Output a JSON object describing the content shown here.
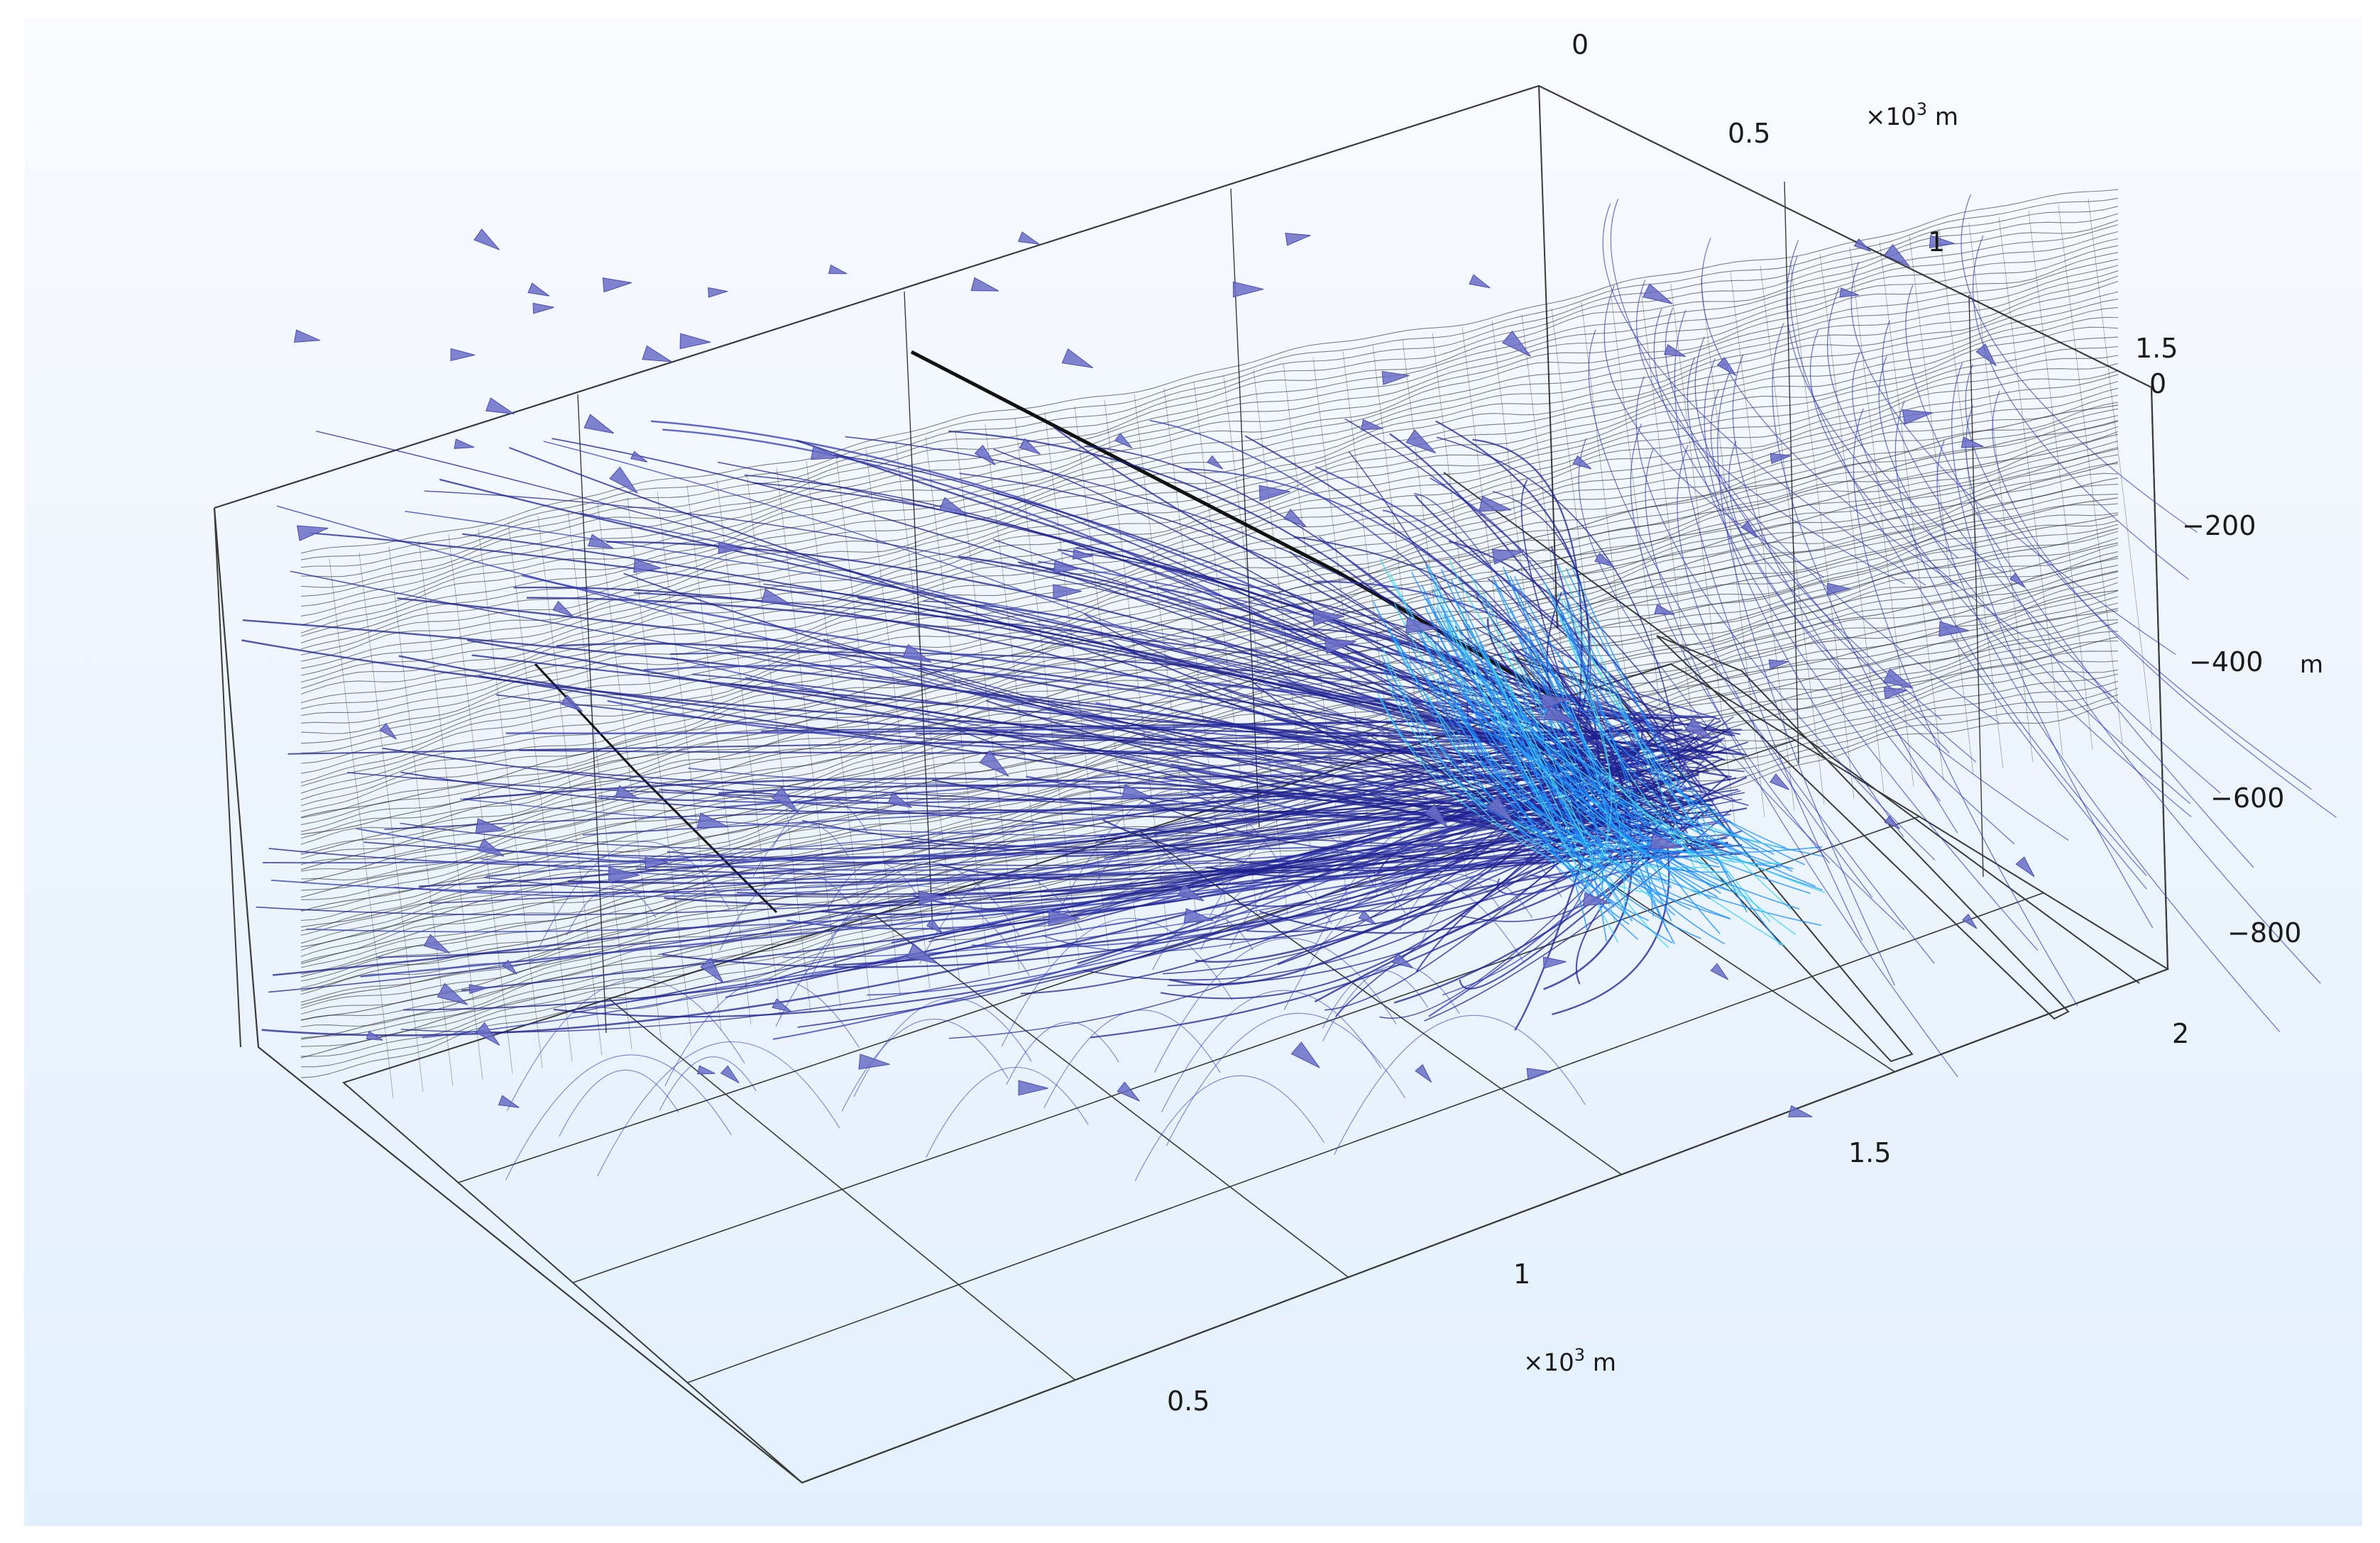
{
  "plot": {
    "type": "3d-streamline",
    "description_colors": {
      "background_top": "#f9fbfe",
      "background_bottom": "#e3f0fc",
      "box_lines": "#3a3a3a",
      "mesh_lines": "#1c1c1c",
      "streamline_dark": "#1c1f8c",
      "streamline_mid": "#3038b0",
      "streamline_bright": "#1e90ff",
      "streamline_cyan": "#44d4ef",
      "arrow_fill": "#6a6dc6"
    }
  },
  "axes": {
    "x": {
      "ticks": [
        "0.5",
        "1",
        "1.5",
        "2"
      ],
      "unit_prefix": "×10",
      "unit_exp": "3",
      "unit_suffix": " m"
    },
    "y": {
      "ticks": [
        "0",
        "0.5",
        "1",
        "1.5"
      ],
      "unit_prefix": "×10",
      "unit_exp": "3",
      "unit_suffix": " m"
    },
    "z": {
      "ticks": [
        "0",
        "−200",
        "−400",
        "−600",
        "−800"
      ],
      "unit": "m"
    }
  }
}
